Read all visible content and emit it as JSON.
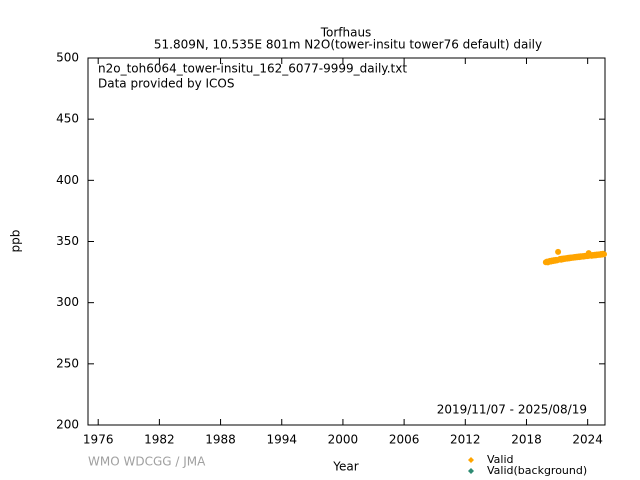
{
  "chart_data": {
    "type": "scatter",
    "title": "Torfhaus",
    "subtitle": "51.809N, 10.535E 801m    N2O(tower-insitu tower76 default) daily",
    "annotations": [
      "n2o_toh6064_tower-insitu_162_6077-9999_daily.txt",
      "Data provided by ICOS",
      "2019/11/07 - 2025/08/19"
    ],
    "credit": "WMO WDCGG / JMA",
    "xlabel": "Year",
    "ylabel": "ppb",
    "xlim": [
      1975,
      2025.7
    ],
    "ylim": [
      200,
      500
    ],
    "xticks": [
      1976,
      1982,
      1988,
      1994,
      2000,
      2006,
      2012,
      2018,
      2024
    ],
    "yticks": [
      200,
      250,
      300,
      350,
      400,
      450,
      500
    ],
    "x": [
      2019.9,
      2020.0,
      2020.1,
      2020.2,
      2020.3,
      2020.4,
      2020.5,
      2020.6,
      2020.7,
      2020.8,
      2020.9,
      2021.0,
      2021.1,
      2021.2,
      2021.3,
      2021.4,
      2021.5,
      2021.6,
      2021.7,
      2021.8,
      2021.9,
      2022.0,
      2022.1,
      2022.2,
      2022.3,
      2022.4,
      2022.5,
      2022.6,
      2022.7,
      2022.8,
      2022.9,
      2023.0,
      2023.1,
      2023.2,
      2023.3,
      2023.4,
      2023.5,
      2023.6,
      2023.7,
      2023.8,
      2023.9,
      2024.0,
      2024.1,
      2024.2,
      2024.3,
      2024.4,
      2024.5,
      2024.6,
      2024.7,
      2024.8,
      2024.9,
      2025.0,
      2025.1,
      2025.2,
      2025.3,
      2025.4,
      2025.5,
      2025.6
    ],
    "series": [
      {
        "name": "Valid",
        "color": "#ffa500",
        "values": [
          333.0,
          333.5,
          332.9,
          333.8,
          334.2,
          333.6,
          334.5,
          334.0,
          334.8,
          334.3,
          335.0,
          334.6,
          341.5,
          335.2,
          335.8,
          335.1,
          336.0,
          335.5,
          336.2,
          335.8,
          336.4,
          336.0,
          336.7,
          336.2,
          336.9,
          336.5,
          337.0,
          336.7,
          337.3,
          336.9,
          337.5,
          337.1,
          337.7,
          337.2,
          337.9,
          337.5,
          338.0,
          337.6,
          338.3,
          337.9,
          338.5,
          338.0,
          340.5,
          338.4,
          338.8,
          338.3,
          339.0,
          338.6,
          339.2,
          338.7,
          339.4,
          339.0,
          339.5,
          339.1,
          339.8,
          339.3,
          340.0,
          339.6
        ]
      },
      {
        "name": "Valid(background)",
        "color": "#2e8b73",
        "values": []
      }
    ]
  }
}
